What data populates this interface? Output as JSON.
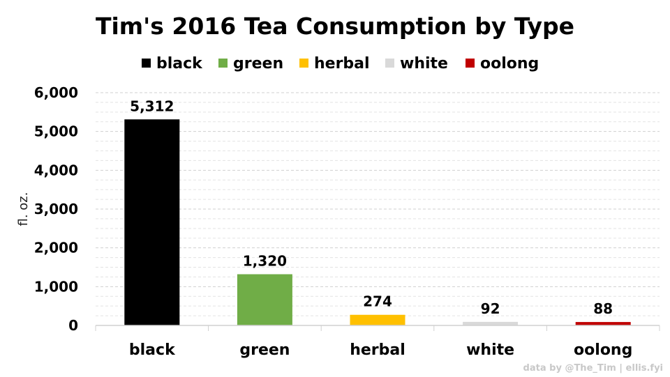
{
  "chart_data": {
    "type": "bar",
    "title": "Tim's 2016 Tea Consumption by Type",
    "categories": [
      "black",
      "green",
      "herbal",
      "white",
      "oolong"
    ],
    "values": [
      5312,
      1320,
      274,
      92,
      88
    ],
    "value_labels": [
      "5,312",
      "1,320",
      "274",
      "92",
      "88"
    ],
    "colors": [
      "#000000",
      "#70ad47",
      "#ffc000",
      "#d9d9d9",
      "#c00000"
    ],
    "legend": [
      "black",
      "green",
      "herbal",
      "white",
      "oolong"
    ],
    "legend_position": "top",
    "xlabel": "",
    "ylabel": "fl. oz.",
    "ylim": [
      0,
      6000
    ],
    "yticks": [
      0,
      1000,
      2000,
      3000,
      4000,
      5000,
      6000
    ],
    "ytick_labels": [
      "0",
      "1,000",
      "2,000",
      "3,000",
      "4,000",
      "5,000",
      "6,000"
    ],
    "grid": true,
    "credit": "data by @The_Tim | ellis.fyi"
  }
}
